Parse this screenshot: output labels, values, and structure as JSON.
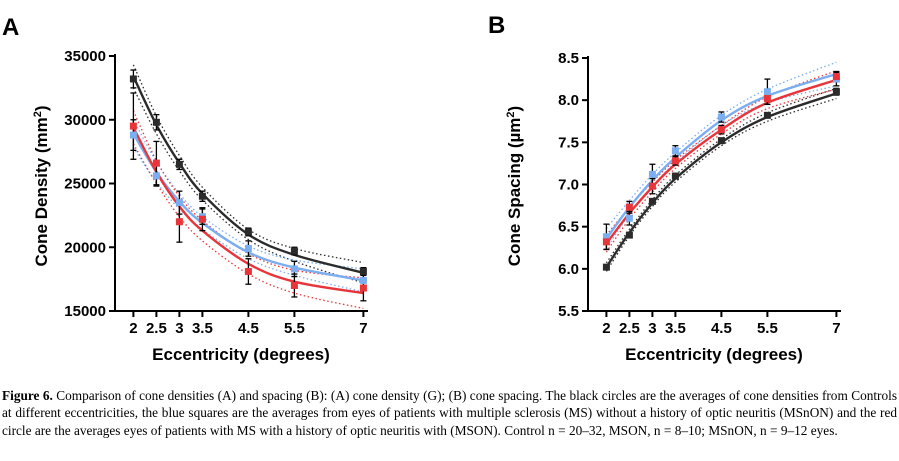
{
  "colors": {
    "control": "#2b2b2b",
    "msnon": "#7aaef0",
    "mson": "#e8353a"
  },
  "caption": {
    "label": "Figure 6.",
    "text": "Comparison of cone densities (A) and spacing (B): (A) cone density (G); (B) cone spacing. The black circles are the averages of cone densities from Controls at different eccentricities, the blue squares are the averages from eyes of patients with multiple sclerosis (MS) without a history of optic neuritis (MSnON) and the red circle are the averages eyes of patients with MS with a history of optic neuritis with (MSON). Control n = 20–32, MSON, n = 8–10; MSnON, n = 9–12 eyes."
  },
  "chart_data": [
    {
      "panel": "A",
      "type": "scatter",
      "xlabel": "Eccentricity (degrees)",
      "ylabel": "Cone Density (mm2)",
      "x_ticks": [
        "2",
        "2.5",
        "3",
        "3.5",
        "4.5",
        "5.5",
        "7"
      ],
      "y_ticks": [
        "15000",
        "20000",
        "25000",
        "30000",
        "35000"
      ],
      "xlim": [
        1.6,
        7.1
      ],
      "ylim": [
        15000,
        35000
      ],
      "series": [
        {
          "key": "control",
          "marker": "square",
          "x": [
            2,
            2.5,
            3,
            3.5,
            4.5,
            5.5,
            7
          ],
          "y": [
            33200,
            29800,
            26500,
            24000,
            21200,
            19700,
            18100
          ],
          "err": [
            700,
            600,
            400,
            400,
            300,
            300,
            300
          ],
          "fit": [
            33400,
            29600,
            26600,
            24200,
            21000,
            19400,
            18000
          ],
          "ci": [
            900,
            700,
            600,
            500,
            400,
            500,
            800
          ]
        },
        {
          "key": "msnon",
          "marker": "square",
          "x": [
            2,
            2.5,
            3,
            3.5,
            4.5,
            5.5,
            7
          ],
          "y": [
            28800,
            25600,
            23500,
            22400,
            19900,
            18300,
            17400
          ],
          "err": [
            1200,
            800,
            900,
            600,
            600,
            600,
            700
          ],
          "fit": [
            28900,
            25900,
            23600,
            21900,
            19600,
            18400,
            17400
          ],
          "ci": [
            1100,
            800,
            600,
            500,
            500,
            600,
            900
          ]
        },
        {
          "key": "mson",
          "marker": "square",
          "x": [
            2,
            2.5,
            3,
            3.5,
            4.5,
            5.5,
            7
          ],
          "y": [
            29500,
            26600,
            22000,
            22200,
            18100,
            17000,
            16800
          ],
          "err": [
            2600,
            1700,
            1600,
            900,
            1000,
            900,
            1000
          ],
          "fit": [
            29400,
            25900,
            23200,
            21300,
            18700,
            17300,
            16400
          ],
          "ci": [
            1300,
            900,
            800,
            800,
            800,
            900,
            1200
          ]
        }
      ]
    },
    {
      "panel": "B",
      "type": "scatter",
      "xlabel": "Eccentricity (degrees)",
      "ylabel": "Cone Spacing (µm2)",
      "x_ticks": [
        "2",
        "2.5",
        "3",
        "3.5",
        "4.5",
        "5.5",
        "7"
      ],
      "y_ticks": [
        "5.5",
        "6.0",
        "6.5",
        "7.0",
        "7.5",
        "8.0",
        "8.5"
      ],
      "xlim": [
        1.6,
        7.1
      ],
      "ylim": [
        5.5,
        8.5
      ],
      "series": [
        {
          "key": "control",
          "marker": "square",
          "x": [
            2,
            2.5,
            3,
            3.5,
            4.5,
            5.5,
            7
          ],
          "y": [
            6.02,
            6.4,
            6.8,
            7.1,
            7.52,
            7.82,
            8.1
          ],
          "err": [
            0.03,
            0.03,
            0.03,
            0.03,
            0.03,
            0.03,
            0.04
          ],
          "fit": [
            6.02,
            6.43,
            6.78,
            7.07,
            7.5,
            7.8,
            8.08
          ],
          "ci": [
            0.05,
            0.04,
            0.04,
            0.04,
            0.04,
            0.05,
            0.06
          ]
        },
        {
          "key": "msnon",
          "marker": "square",
          "x": [
            2,
            2.5,
            3,
            3.5,
            4.5,
            5.5,
            7
          ],
          "y": [
            6.38,
            6.6,
            7.12,
            7.4,
            7.8,
            8.1,
            8.25
          ],
          "err": [
            0.15,
            0.08,
            0.12,
            0.06,
            0.06,
            0.15,
            0.08
          ],
          "fit": [
            6.36,
            6.73,
            7.05,
            7.32,
            7.76,
            8.05,
            8.31
          ],
          "ci": [
            0.12,
            0.08,
            0.07,
            0.06,
            0.06,
            0.08,
            0.14
          ]
        },
        {
          "key": "mson",
          "marker": "square",
          "x": [
            2,
            2.5,
            3,
            3.5,
            4.5,
            5.5,
            7
          ],
          "y": [
            6.32,
            6.73,
            6.98,
            7.28,
            7.65,
            8.02,
            8.28
          ],
          "err": [
            0.09,
            0.07,
            0.09,
            0.05,
            0.05,
            0.07,
            0.06
          ],
          "fit": [
            6.3,
            6.66,
            6.97,
            7.24,
            7.65,
            7.97,
            8.24
          ],
          "ci": [
            0.1,
            0.07,
            0.06,
            0.05,
            0.05,
            0.07,
            0.11
          ]
        }
      ]
    }
  ]
}
